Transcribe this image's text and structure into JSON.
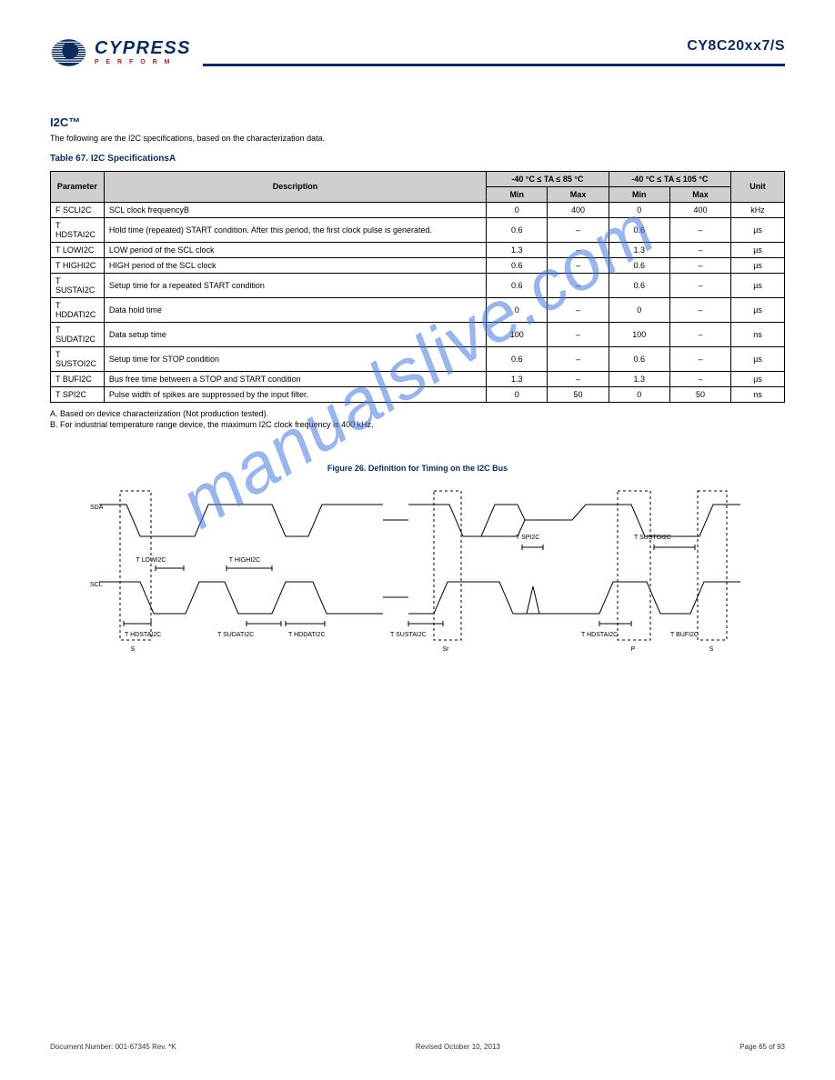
{
  "header": {
    "logo_name": "CYPRESS",
    "logo_tagline": "P E R F O R M",
    "part_no": "CY8C20xx7/S"
  },
  "section": {
    "title": "I2C™"
  },
  "subsection": {
    "title": "Table 67. I2C SpecificationsA"
  },
  "intro": "The following are the I2C specifications, based on the characterization data.",
  "left_header": "-40 °C ≤ TA ≤ 85 °C",
  "right_header": "-40 °C ≤ TA ≤ 105 °C",
  "columns": [
    "Parameter",
    "Description",
    "Min",
    "Max",
    "Min",
    "Max",
    "Unit"
  ],
  "rows": [
    [
      "F SCLI2C",
      "SCL clock frequencyB",
      "0",
      "400",
      "0",
      "400",
      "kHz"
    ],
    [
      "T HDSTAI2C",
      "Hold time (repeated) START condition. After this period, the first clock pulse is generated.",
      "0.6",
      "–",
      "0.6",
      "–",
      "µs"
    ],
    [
      "T LOWI2C",
      "LOW period of the SCL clock",
      "1.3",
      "–",
      "1.3",
      "–",
      "µs"
    ],
    [
      "T HIGHI2C",
      "HIGH period of the SCL clock",
      "0.6",
      "–",
      "0.6",
      "–",
      "µs"
    ],
    [
      "T SUSTAI2C",
      "Setup time for a repeated START condition",
      "0.6",
      "–",
      "0.6",
      "–",
      "µs"
    ],
    [
      "T HDDATI2C",
      "Data hold time",
      "0",
      "–",
      "0",
      "–",
      "µs"
    ],
    [
      "T SUDATI2C",
      "Data setup time",
      "100",
      "–",
      "100",
      "–",
      "ns"
    ],
    [
      "T SUSTOI2C",
      "Setup time for STOP condition",
      "0.6",
      "–",
      "0.6",
      "–",
      "µs"
    ],
    [
      "T BUFI2C",
      "Bus free time between a STOP and START condition",
      "1.3",
      "–",
      "1.3",
      "–",
      "µs"
    ],
    [
      "T SPI2C",
      "Pulse width of spikes are suppressed by the input filter.",
      "0",
      "50",
      "0",
      "50",
      "ns"
    ]
  ],
  "notes": {
    "a": "A. Based on device characterization (Not production tested).",
    "b": "B. For industrial temperature range device, the maximum I2C clock frequency is 400 kHz."
  },
  "figure": {
    "title": "Figure 26. Definition for Timing on the I2C Bus"
  },
  "diagram": {
    "sda_label": "SDA",
    "scl_label": "SCL",
    "l1": "T HDSTAI2C",
    "l2": "T LOWI2C",
    "l3": "T HIGHI2C",
    "l4": "T HDDATI2C",
    "l5": "T SUSTAI2C",
    "l6": "T SPI2C",
    "l7": "T HDSTAI2C",
    "l8": "T SUSTOI2C",
    "l9": "T BUFI2C",
    "l10": "T SUDATI2C",
    "b1": "S",
    "b2": "Sr",
    "b3": "P",
    "b4": "S",
    "stroke": "#000",
    "stroke_w": 1,
    "font_size": 7
  },
  "footer": {
    "doc": "Document Number: 001-67345 Rev. *K",
    "date": "Revised October 10, 2013",
    "page": "Page 65 of 93"
  }
}
